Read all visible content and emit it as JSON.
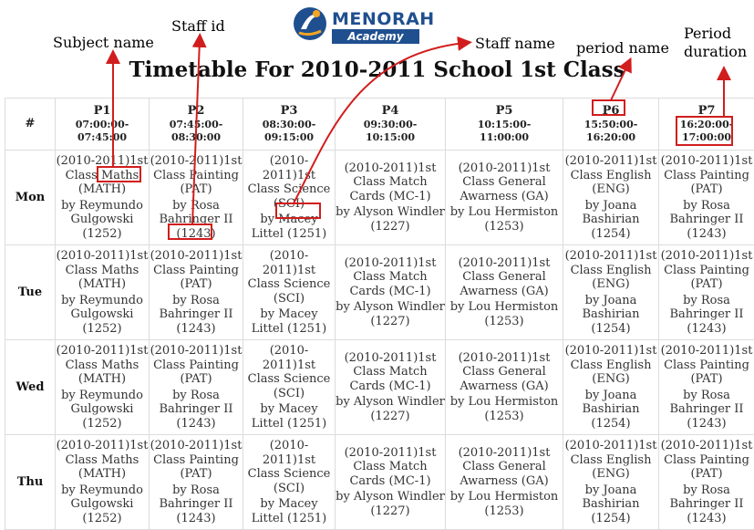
{
  "brand": {
    "name": "MENORAH",
    "sub": "Academy"
  },
  "title": "Timetable For 2010-2011 School 1st Class",
  "annotations": {
    "subject_name": "Subject name",
    "staff_id": "Staff id",
    "staff_name": "Staff name",
    "period_name": "period name",
    "period_duration_1": "Period",
    "period_duration_2": "duration"
  },
  "corner": "#",
  "periods": [
    {
      "name": "P1",
      "start": "07:00:00-",
      "end": "07:45:00"
    },
    {
      "name": "P2",
      "start": "07:45:00-",
      "end": "08:30:00"
    },
    {
      "name": "P3",
      "start": "08:30:00-",
      "end": "09:15:00"
    },
    {
      "name": "P4",
      "start": "09:30:00-",
      "end": "10:15:00"
    },
    {
      "name": "P5",
      "start": "10:15:00-",
      "end": "11:00:00"
    },
    {
      "name": "P6",
      "start": "15:50:00-",
      "end": "16:20:00"
    },
    {
      "name": "P7",
      "start": "16:20:00-",
      "end": "17:00:00"
    }
  ],
  "days": [
    "Mon",
    "Tue",
    "Wed",
    "Thu"
  ],
  "slots": [
    {
      "l1": "(2010-2011)1st",
      "l2": "Class Maths",
      "l3": "(MATH)",
      "l4": "by Reymundo",
      "l5": "Gulgowski",
      "l6": "(1252)"
    },
    {
      "l1": "(2010-2011)1st",
      "l2": "Class Painting",
      "l3": "(PAT)",
      "l4": "by Rosa",
      "l5": "Bahringer II",
      "l6": "(1243)"
    },
    {
      "l1": "(2010-2011)1st",
      "l2": "Class Science",
      "l3": "(SCI)",
      "l4": "by Macey",
      "l5": "Littel (1251)",
      "l6": ""
    },
    {
      "l1": "(2010-2011)1st",
      "l2": "Class Match",
      "l3": "Cards (MC-1)",
      "l4": "by Alyson Windler",
      "l5": "(1227)",
      "l6": ""
    },
    {
      "l1": "(2010-2011)1st",
      "l2": "Class General",
      "l3": "Awarness (GA)",
      "l4": "by Lou Hermiston",
      "l5": "(1253)",
      "l6": ""
    },
    {
      "l1": "(2010-2011)1st",
      "l2": "Class English",
      "l3": "(ENG)",
      "l4": "by Joana",
      "l5": "Bashirian",
      "l6": "(1254)"
    },
    {
      "l1": "(2010-2011)1st",
      "l2": "Class Painting",
      "l3": "(PAT)",
      "l4": "by Rosa",
      "l5": "Bahringer II",
      "l6": "(1243)"
    }
  ],
  "colors": {
    "brand": "#1f4f8f",
    "brand_accent": "#f5a623",
    "highlight": "#d11d1d"
  }
}
